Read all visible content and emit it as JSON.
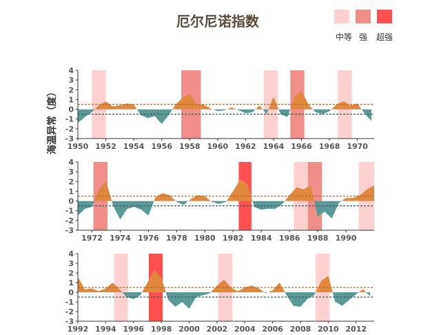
{
  "chart_data": {
    "type": "area",
    "title": "厄尔尼诺指数",
    "ylabel": "海温异常（度）",
    "legend": {
      "placement": "top-right",
      "items": [
        {
          "label": "中等",
          "color": "#ffd0d0"
        },
        {
          "label": "强",
          "color": "#f08e8a"
        },
        {
          "label": "超强",
          "color": "#ff5050"
        }
      ]
    },
    "colors": {
      "positive": "#e0893e",
      "negative": "#5a9a96",
      "upper_threshold": "#b36a1a",
      "lower_threshold": "#2f5f5c",
      "axis": "#333333"
    },
    "thresholds": [
      0.5,
      -0.5
    ],
    "ylim": [
      -3,
      4
    ],
    "yticks": [
      4,
      3,
      2,
      1,
      0,
      -1,
      -2,
      -3
    ],
    "panels": [
      {
        "xlim": [
          1950,
          1971.2
        ],
        "xticks": [
          "1950",
          "1952",
          "1954",
          "1956",
          "1958",
          "1960",
          "1962",
          "1964",
          "1966",
          "1968",
          "1970"
        ],
        "x": [
          1950.0,
          1950.5,
          1951.0,
          1951.5,
          1952.0,
          1952.5,
          1953.0,
          1953.5,
          1954.0,
          1954.5,
          1955.0,
          1955.5,
          1956.0,
          1956.5,
          1957.0,
          1957.5,
          1958.0,
          1958.5,
          1959.0,
          1959.5,
          1960.0,
          1960.5,
          1961.0,
          1961.5,
          1962.0,
          1962.5,
          1963.0,
          1963.5,
          1964.0,
          1964.5,
          1965.0,
          1965.5,
          1966.0,
          1966.5,
          1967.0,
          1967.5,
          1968.0,
          1968.5,
          1969.0,
          1969.5,
          1970.0,
          1970.5,
          1971.0
        ],
        "y": [
          -1.4,
          -0.8,
          -0.3,
          0.4,
          0.8,
          0.3,
          0.4,
          0.6,
          0.5,
          -0.6,
          -0.9,
          -0.7,
          -1.5,
          -0.6,
          0.5,
          1.2,
          1.6,
          0.5,
          0.5,
          0.1,
          -0.2,
          -0.1,
          0.2,
          -0.1,
          -0.4,
          -0.3,
          0.4,
          -0.5,
          1.3,
          -0.5,
          -0.8,
          1.3,
          1.9,
          0.5,
          -0.3,
          -0.5,
          -0.2,
          0.5,
          0.8,
          0.4,
          0.6,
          -0.4,
          -1.2
        ],
        "events": [
          {
            "start": 1951.0,
            "end": 1952.0,
            "strength": "中等"
          },
          {
            "start": 1957.4,
            "end": 1958.8,
            "strength": "强"
          },
          {
            "start": 1963.3,
            "end": 1964.3,
            "strength": "中等"
          },
          {
            "start": 1965.2,
            "end": 1966.2,
            "strength": "强"
          },
          {
            "start": 1968.6,
            "end": 1969.6,
            "strength": "中等"
          }
        ]
      },
      {
        "xlim": [
          1971,
          1992
        ],
        "xticks": [
          "1972",
          "1974",
          "1976",
          "1978",
          "1980",
          "1982",
          "1984",
          "1986",
          "1988",
          "1990"
        ],
        "x": [
          1971.0,
          1971.5,
          1972.0,
          1972.5,
          1973.0,
          1973.5,
          1974.0,
          1974.5,
          1975.0,
          1975.5,
          1976.0,
          1976.5,
          1977.0,
          1977.5,
          1978.0,
          1978.5,
          1979.0,
          1979.5,
          1980.0,
          1980.5,
          1981.0,
          1981.5,
          1982.0,
          1982.5,
          1983.0,
          1983.5,
          1984.0,
          1984.5,
          1985.0,
          1985.5,
          1986.0,
          1986.5,
          1987.0,
          1987.5,
          1988.0,
          1988.5,
          1989.0,
          1989.5,
          1990.0,
          1990.5,
          1991.0,
          1991.5,
          1992.0
        ],
        "y": [
          -1.5,
          -0.8,
          -0.6,
          1.2,
          2.0,
          -0.5,
          -1.9,
          -0.8,
          -0.6,
          -0.9,
          -1.5,
          0.4,
          0.8,
          0.6,
          -0.1,
          -0.4,
          0.2,
          0.6,
          0.5,
          -0.1,
          -0.3,
          -0.1,
          1.0,
          2.2,
          1.8,
          -0.6,
          -0.9,
          -0.8,
          -0.8,
          -0.3,
          0.6,
          1.4,
          1.2,
          1.6,
          -1.6,
          -1.1,
          -1.8,
          -0.2,
          0.3,
          0.3,
          0.6,
          1.2,
          1.6
        ],
        "events": [
          {
            "start": 1972.1,
            "end": 1973.1,
            "strength": "强"
          },
          {
            "start": 1982.4,
            "end": 1983.3,
            "strength": "超强"
          },
          {
            "start": 1986.3,
            "end": 1987.3,
            "strength": "中等"
          },
          {
            "start": 1987.3,
            "end": 1988.3,
            "strength": "强"
          },
          {
            "start": 1990.9,
            "end": 1992.0,
            "strength": "中等"
          }
        ]
      },
      {
        "xlim": [
          1992,
          2013.3
        ],
        "xticks": [
          "1992",
          "1994",
          "1996",
          "1998",
          "2000",
          "2002",
          "2004",
          "2006",
          "2008",
          "2010",
          "2012"
        ],
        "x": [
          1992.0,
          1992.5,
          1993.0,
          1993.5,
          1994.0,
          1994.5,
          1995.0,
          1995.5,
          1996.0,
          1996.5,
          1997.0,
          1997.5,
          1998.0,
          1998.5,
          1999.0,
          1999.5,
          2000.0,
          2000.5,
          2001.0,
          2001.5,
          2002.0,
          2002.5,
          2003.0,
          2003.5,
          2004.0,
          2004.5,
          2005.0,
          2005.5,
          2006.0,
          2006.5,
          2007.0,
          2007.5,
          2008.0,
          2008.5,
          2009.0,
          2009.5,
          2010.0,
          2010.5,
          2011.0,
          2011.5,
          2012.0,
          2012.5,
          2013.0
        ],
        "y": [
          1.6,
          0.3,
          0.4,
          0.1,
          0.4,
          1.0,
          0.3,
          -0.5,
          -0.7,
          -0.3,
          1.0,
          2.3,
          1.5,
          -0.8,
          -1.5,
          -1.0,
          -1.7,
          -0.5,
          -0.3,
          -0.1,
          0.7,
          1.3,
          0.5,
          0.1,
          0.5,
          0.7,
          0.4,
          -0.1,
          0.2,
          1.0,
          -0.3,
          -1.4,
          -1.5,
          -0.7,
          -0.3,
          1.2,
          1.7,
          -1.0,
          -1.4,
          -0.8,
          -0.2,
          0.3,
          -0.4
        ],
        "events": [
          {
            "start": 1994.6,
            "end": 1995.6,
            "strength": "中等"
          },
          {
            "start": 1997.1,
            "end": 1998.1,
            "strength": "超强"
          },
          {
            "start": 2002.1,
            "end": 2003.1,
            "strength": "中等"
          },
          {
            "start": 2009.1,
            "end": 2010.1,
            "strength": "中等"
          }
        ]
      }
    ]
  }
}
